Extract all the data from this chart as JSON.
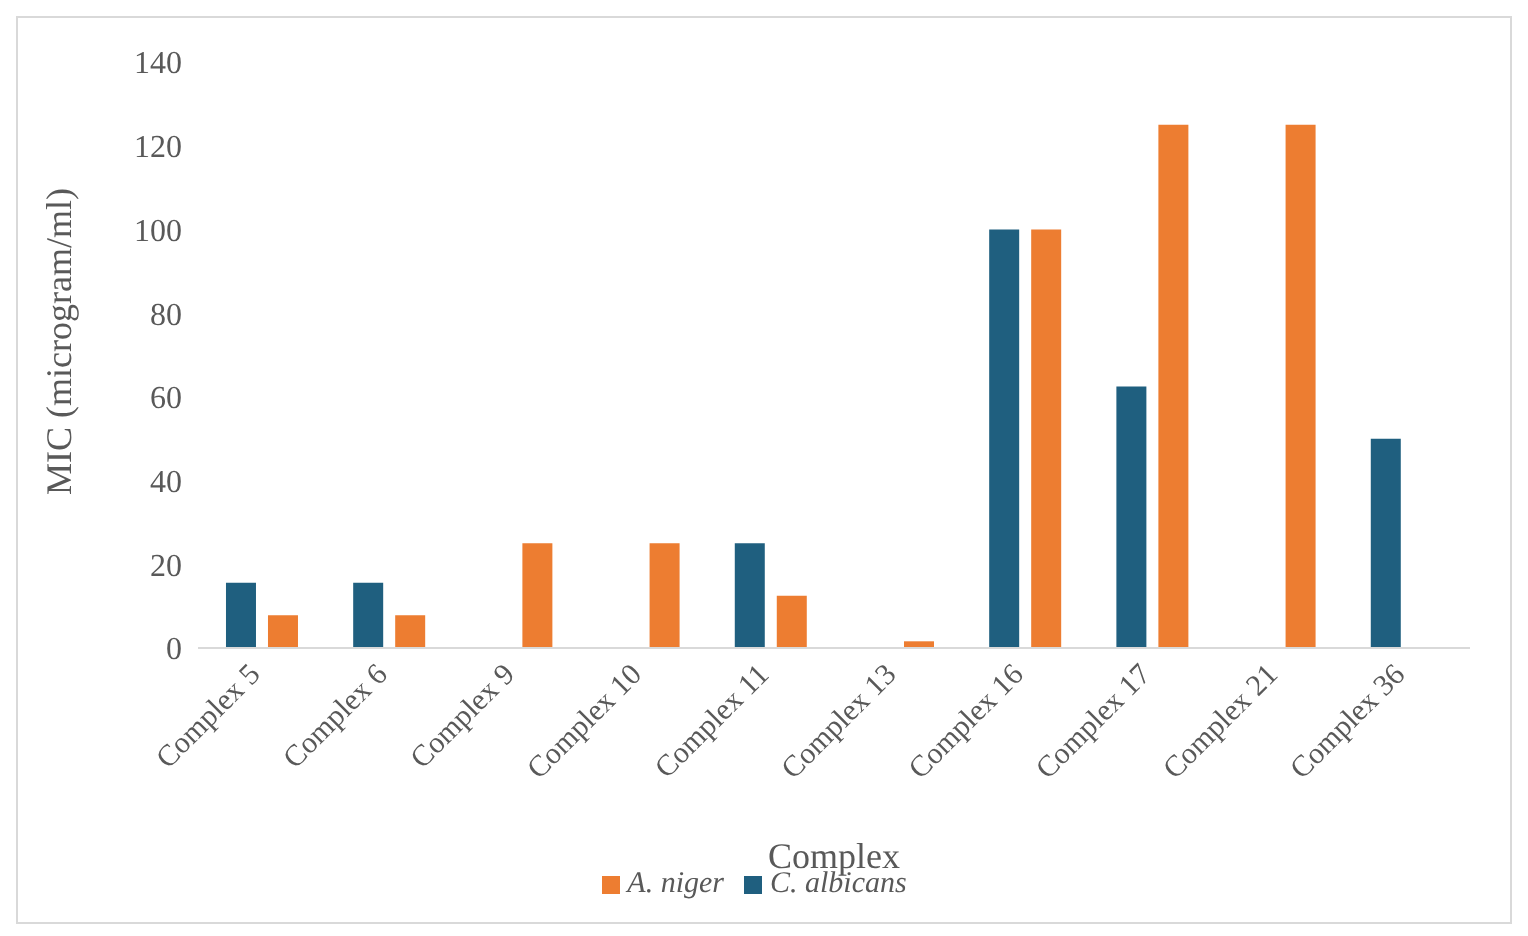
{
  "chart_data": {
    "type": "bar",
    "xlabel": "Complex",
    "ylabel": "MIC (microgram/ml)",
    "categories": [
      "Complex 5",
      "Complex 6",
      "Complex 9",
      "Complex 10",
      "Complex 11",
      "Complex 13",
      "Complex 16",
      "Complex 17",
      "Complex 21",
      "Complex 36"
    ],
    "series": [
      {
        "name": "C. albicans",
        "color": "#1f5f7f",
        "values": [
          15.6,
          15.6,
          null,
          null,
          25,
          null,
          100,
          62.5,
          null,
          50
        ]
      },
      {
        "name": "A. niger",
        "color": "#ed7d31",
        "values": [
          7.8,
          7.8,
          25,
          25,
          12.5,
          1.6,
          100,
          125,
          125,
          null
        ]
      }
    ],
    "ylim": [
      0,
      140
    ],
    "yticks": [
      0,
      20,
      40,
      60,
      80,
      100,
      120,
      140
    ],
    "grid": false,
    "legend": "bottom"
  }
}
